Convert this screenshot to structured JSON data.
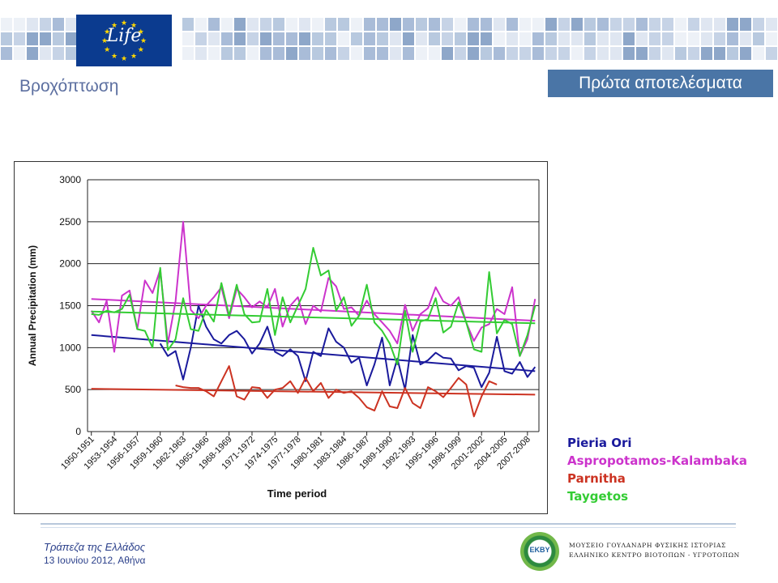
{
  "header": {
    "logo_text": "Life",
    "slide_title": "Βροχόπτωση",
    "section_label": "Πρώτα αποτελέσματα"
  },
  "chart_data": {
    "type": "line",
    "xlabel": "Time period",
    "ylabel": "Annual Precipitation (mm)",
    "ylim": [
      0,
      3000
    ],
    "yticks": [
      0,
      500,
      1000,
      1500,
      2000,
      2500,
      3000
    ],
    "grid": "horizontal",
    "legend_position": "right-outside",
    "categories": [
      "1950-1951",
      "1951-1952",
      "1952-1953",
      "1953-1954",
      "1954-1955",
      "1955-1956",
      "1956-1957",
      "1957-1958",
      "1958-1959",
      "1959-1960",
      "1960-1961",
      "1961-1962",
      "1962-1963",
      "1963-1964",
      "1964-1965",
      "1965-1966",
      "1966-1967",
      "1967-1968",
      "1968-1969",
      "1969-1970",
      "1970-1971",
      "1971-1972",
      "1972-1973",
      "1973-1974",
      "1974-1975",
      "1975-1976",
      "1976-1977",
      "1977-1978",
      "1978-1979",
      "1979-1980",
      "1980-1981",
      "1981-1982",
      "1982-1983",
      "1983-1984",
      "1984-1985",
      "1985-1986",
      "1986-1987",
      "1987-1988",
      "1988-1989",
      "1989-1990",
      "1990-1991",
      "1991-1992",
      "1992-1993",
      "1993-1994",
      "1994-1995",
      "1995-1996",
      "1996-1997",
      "1997-1998",
      "1998-1999",
      "1999-2000",
      "2000-2001",
      "2001-2002",
      "2002-2003",
      "2003-2004",
      "2004-2005",
      "2005-2006",
      "2006-2007",
      "2007-2008",
      "2008-2009"
    ],
    "x_tick_labels": [
      "1950-1951",
      "1953-1954",
      "1956-1957",
      "1959-1960",
      "1962-1963",
      "1965-1966",
      "1968-1969",
      "1971-1972",
      "1974-1975",
      "1977-1978",
      "1980-1981",
      "1983-1984",
      "1986-1987",
      "1989-1990",
      "1992-1993",
      "1995-1996",
      "1998-1999",
      "2001-2002",
      "2004-2005",
      "2007-2008"
    ],
    "series": [
      {
        "name": "Pieria Ori",
        "color": "#1a1a9c",
        "values": [
          null,
          null,
          null,
          null,
          null,
          null,
          null,
          null,
          null,
          1050,
          900,
          960,
          620,
          1000,
          1500,
          1250,
          1100,
          1050,
          1150,
          1200,
          1100,
          930,
          1050,
          1250,
          950,
          900,
          980,
          900,
          600,
          950,
          900,
          1230,
          1070,
          1000,
          820,
          880,
          550,
          800,
          1120,
          550,
          870,
          500,
          1150,
          800,
          850,
          940,
          880,
          870,
          730,
          780,
          760,
          530,
          700,
          1130,
          720,
          690,
          830,
          650,
          770
        ],
        "trend": [
          1150,
          720
        ]
      },
      {
        "name": "Aspropotamos-Kalambaka",
        "color": "#cc33cc",
        "values": [
          1440,
          1300,
          1560,
          950,
          1620,
          1680,
          1220,
          1800,
          1650,
          1930,
          1050,
          1550,
          2500,
          1450,
          1350,
          1500,
          1600,
          1720,
          1350,
          1700,
          1600,
          1480,
          1550,
          1480,
          1700,
          1250,
          1500,
          1600,
          1280,
          1500,
          1430,
          1830,
          1730,
          1460,
          1480,
          1380,
          1560,
          1400,
          1300,
          1200,
          1050,
          1510,
          1200,
          1400,
          1470,
          1720,
          1550,
          1500,
          1600,
          1300,
          1080,
          1240,
          1280,
          1460,
          1400,
          1720,
          900,
          1100,
          1580
        ],
        "trend": [
          1580,
          1320
        ]
      },
      {
        "name": "Parnitha",
        "color": "#cc3322",
        "values": [
          null,
          null,
          null,
          null,
          null,
          null,
          null,
          null,
          null,
          null,
          null,
          550,
          530,
          520,
          520,
          480,
          420,
          600,
          780,
          420,
          380,
          530,
          520,
          400,
          500,
          520,
          600,
          460,
          640,
          480,
          580,
          400,
          500,
          460,
          480,
          400,
          290,
          250,
          480,
          300,
          280,
          520,
          340,
          280,
          530,
          480,
          410,
          520,
          640,
          560,
          180,
          420,
          600,
          560,
          null,
          null,
          null,
          null,
          null
        ],
        "trend": [
          510,
          440
        ]
      },
      {
        "name": "Taygetos",
        "color": "#33cc33",
        "values": [
          1400,
          1390,
          1440,
          1420,
          1460,
          1630,
          1220,
          1200,
          1000,
          1950,
          970,
          1100,
          1590,
          1220,
          1200,
          1450,
          1310,
          1770,
          1380,
          1750,
          1400,
          1300,
          1310,
          1700,
          1150,
          1600,
          1300,
          1500,
          1700,
          2190,
          1860,
          1920,
          1440,
          1600,
          1260,
          1380,
          1750,
          1300,
          1200,
          1050,
          800,
          1440,
          950,
          1310,
          1340,
          1590,
          1180,
          1250,
          1540,
          1300,
          980,
          950,
          1900,
          1170,
          1330,
          1280,
          900,
          1150,
          1500
        ],
        "trend": [
          1430,
          1290
        ]
      }
    ]
  },
  "footer": {
    "line1": "Τράπεζα της Ελλάδος",
    "line2": "13 Ιουνίου 2012, Αθήνα",
    "org_logo_text": "EKBY",
    "org_line1": "ΜΟΥΣΕΙΟ ΓΟΥΛΑΝΔΡΗ ΦΥΣΙΚΗΣ ΙΣΤΟΡΙΑΣ",
    "org_line2": "ΕΛΛΗΝΙΚΟ ΚΕΝΤΡΟ ΒΙΟΤΟΠΩΝ - ΥΓΡΟΤΟΠΩΝ"
  }
}
